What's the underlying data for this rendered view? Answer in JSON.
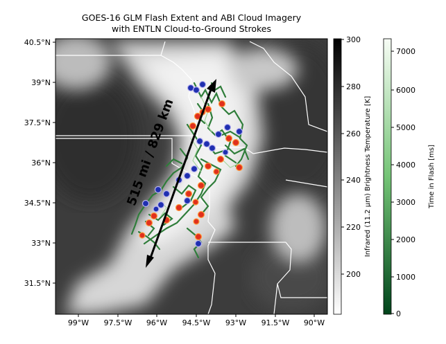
{
  "figure": {
    "title_line1": "GOES-16 GLM Flash Extent and ABI Cloud Imagery",
    "title_line2": "with ENTLN Cloud-to-Ground Strokes"
  },
  "map": {
    "lat_ticks": [
      "40.5°N",
      "39°N",
      "37.5°N",
      "36°N",
      "34.5°N",
      "33°N",
      "31.5°N"
    ],
    "lon_ticks": [
      "99°W",
      "97.5°W",
      "96°W",
      "94.5°W",
      "93°W",
      "91.5°W",
      "90°W"
    ],
    "annotation": "515 mi / 829 km",
    "background_dark": "#3a3a3a",
    "cloud_bright": "#f4f4f4",
    "flash_green": "#2f7d3a",
    "stroke_red": "#e0301e",
    "stroke_blue": "#1f2fb0"
  },
  "colorbar_temp": {
    "label": "Infrared (11.2 µm) Brightness Temperature [K]",
    "ticks": [
      "300",
      "280",
      "260",
      "240",
      "220",
      "200"
    ],
    "range": [
      184,
      300
    ]
  },
  "colorbar_time": {
    "label": "Time in Flash [ms]",
    "ticks": [
      "7000",
      "6000",
      "5000",
      "4000",
      "3000",
      "2000",
      "1000",
      "0"
    ],
    "range": [
      0,
      7400
    ]
  }
}
